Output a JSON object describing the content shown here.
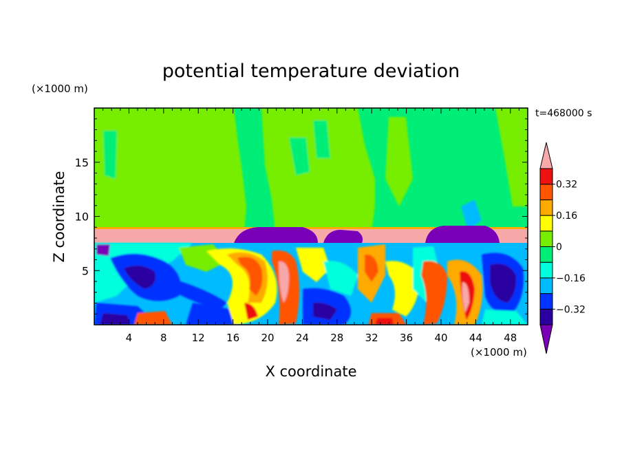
{
  "chart_data": {
    "type": "heatmap",
    "title": "potential temperature deviation",
    "xlabel": "X coordinate",
    "ylabel": "Z coordinate",
    "x_unit": "(×1000 m)",
    "y_unit": "(×1000 m)",
    "time_label": "t=468000 s",
    "xlim": [
      0,
      50
    ],
    "ylim": [
      0,
      20
    ],
    "x_ticks": [
      4,
      8,
      12,
      16,
      20,
      24,
      28,
      32,
      36,
      40,
      44,
      48
    ],
    "y_ticks": [
      5,
      10,
      15
    ],
    "colorbar": {
      "levels": [
        -0.4,
        -0.32,
        -0.24,
        -0.16,
        -0.08,
        0,
        0.08,
        0.16,
        0.24,
        0.32,
        0.4
      ],
      "labels": [
        "0.32",
        "0.16",
        "0",
        "−0.16",
        "−0.32"
      ],
      "label_values": [
        0.32,
        0.16,
        0,
        -0.16,
        -0.32
      ],
      "colors": [
        "#7a00b8",
        "#2a00a0",
        "#0033ff",
        "#00bbff",
        "#00ffdd",
        "#00ee77",
        "#77ee00",
        "#ffff00",
        "#ffaa00",
        "#ff5500",
        "#ee1111",
        "#f7a8a8"
      ],
      "extend": "both"
    }
  }
}
